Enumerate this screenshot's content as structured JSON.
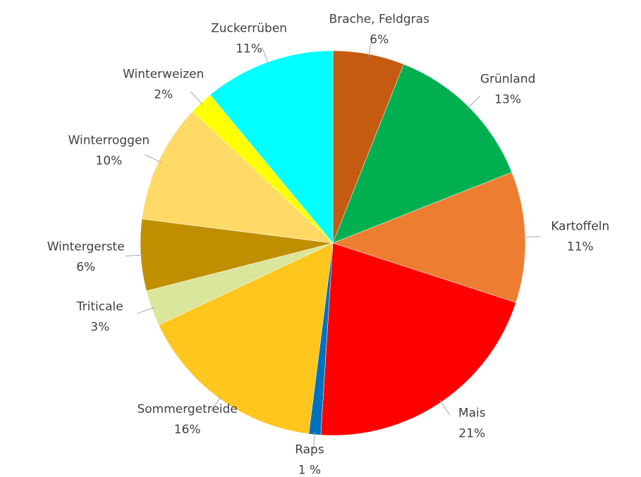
{
  "chart_data": {
    "type": "pie",
    "categories": [
      "Brache, Feldgras",
      "Grünland",
      "Kartoffeln",
      "Mais",
      "Raps",
      "Sommergetreide",
      "Triticale",
      "Wintergerste",
      "Winterroggen",
      "Winterweizen",
      "Zuckerrüben"
    ],
    "values": [
      6,
      13,
      11,
      21,
      1,
      16,
      3,
      6,
      10,
      2,
      11
    ],
    "value_labels": [
      "6%",
      "13%",
      "11%",
      "21%",
      "1 %",
      "16%",
      "3%",
      "6%",
      "10%",
      "2%",
      "11%"
    ],
    "colors": [
      "#c55a11",
      "#00b050",
      "#ed7d31",
      "#ff0000",
      "#0070c0",
      "#ffc61e",
      "#d9e59a",
      "#bf8f00",
      "#ffd966",
      "#ffff00",
      "#00ffff"
    ]
  }
}
